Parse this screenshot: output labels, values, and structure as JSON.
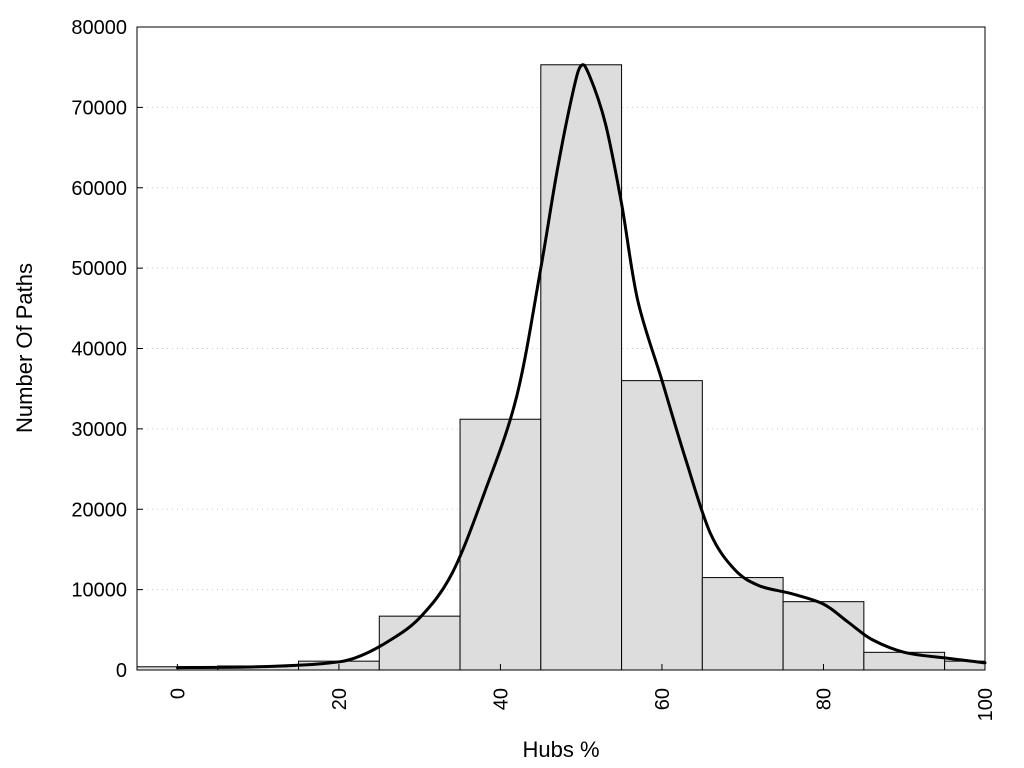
{
  "chart_data": {
    "type": "bar",
    "xlabel": "Hubs %",
    "ylabel": "Number Of Paths",
    "xlim": [
      -5,
      100
    ],
    "ylim": [
      0,
      80000
    ],
    "x_ticks": [
      0,
      20,
      40,
      60,
      80,
      100
    ],
    "y_ticks": [
      0,
      10000,
      20000,
      30000,
      40000,
      50000,
      60000,
      70000,
      80000
    ],
    "grid": "horizontal dotted",
    "bar_color": "#dddddd",
    "bins": [
      {
        "x0": -5,
        "x1": 5,
        "value": 400
      },
      {
        "x0": 5,
        "x1": 15,
        "value": 500
      },
      {
        "x0": 15,
        "x1": 25,
        "value": 1100
      },
      {
        "x0": 25,
        "x1": 35,
        "value": 6700
      },
      {
        "x0": 35,
        "x1": 45,
        "value": 31200
      },
      {
        "x0": 45,
        "x1": 55,
        "value": 75300
      },
      {
        "x0": 55,
        "x1": 65,
        "value": 36000
      },
      {
        "x0": 65,
        "x1": 75,
        "value": 11500
      },
      {
        "x0": 75,
        "x1": 85,
        "value": 8500
      },
      {
        "x0": 85,
        "x1": 95,
        "value": 2200
      },
      {
        "x0": 95,
        "x1": 100,
        "value": 1100
      }
    ],
    "density_curve": {
      "x": [
        0,
        10,
        18,
        22,
        26,
        30,
        34,
        38,
        42,
        45,
        47,
        49,
        50,
        51,
        53,
        55,
        57,
        60,
        63,
        66,
        69,
        72,
        76,
        80,
        83,
        86,
        90,
        95,
        100
      ],
      "y": [
        300,
        400,
        800,
        1500,
        3500,
        6500,
        12000,
        22000,
        34000,
        50000,
        62000,
        72000,
        75200,
        74000,
        68000,
        58000,
        46000,
        36000,
        26000,
        17000,
        12500,
        10500,
        9500,
        8200,
        6000,
        3800,
        2200,
        1500,
        900
      ]
    }
  }
}
